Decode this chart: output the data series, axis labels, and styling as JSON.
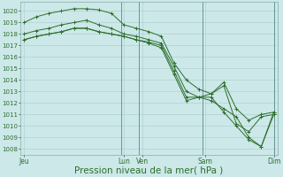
{
  "bg_color": "#cce8e8",
  "grid_color": "#aacccc",
  "line_color": "#2d6e2d",
  "xlabel": "Pression niveau de la mer( hPa )",
  "xlabel_fontsize": 7.5,
  "ylim": [
    1007.5,
    1020.8
  ],
  "yticks": [
    1008,
    1009,
    1010,
    1011,
    1012,
    1013,
    1014,
    1015,
    1016,
    1017,
    1018,
    1019,
    1020
  ],
  "ytick_fontsize": 5.0,
  "xtick_labels": [
    "Jeu",
    "Lun",
    "Ven",
    "Sam",
    "Dim"
  ],
  "xtick_positions": [
    0.0,
    0.38,
    0.44,
    0.69,
    0.95
  ],
  "vline_positions": [
    0.38,
    0.44,
    0.69,
    0.95
  ],
  "n_points": 21,
  "s1_x": [
    0,
    1,
    2,
    3,
    4,
    5,
    6,
    7,
    8,
    9,
    10,
    11,
    12,
    13,
    14,
    15,
    16,
    17,
    18,
    19,
    20
  ],
  "s1": [
    1019.0,
    1019.5,
    1019.8,
    1020.0,
    1020.2,
    1020.2,
    1020.1,
    1019.8,
    1018.8,
    1018.5,
    1018.2,
    1017.8,
    1015.5,
    1014.0,
    1013.2,
    1012.8,
    1013.8,
    1011.5,
    1010.5,
    1011.0,
    1011.2
  ],
  "s2_x": [
    0,
    1,
    2,
    3,
    4,
    5,
    6,
    7,
    8,
    9,
    10,
    11,
    12,
    13,
    14,
    15,
    16,
    17,
    18,
    19,
    20
  ],
  "s2": [
    1018.0,
    1018.3,
    1018.5,
    1018.8,
    1019.0,
    1019.2,
    1018.8,
    1018.5,
    1018.0,
    1017.8,
    1017.5,
    1017.2,
    1015.2,
    1013.0,
    1012.5,
    1012.8,
    1013.5,
    1010.2,
    1009.5,
    1010.8,
    1011.0
  ],
  "s3_x": [
    0,
    1,
    2,
    3,
    4,
    5,
    6,
    7,
    8,
    9,
    10,
    11,
    12,
    13,
    14,
    15,
    16,
    17,
    18,
    19,
    20
  ],
  "s3": [
    1017.5,
    1017.8,
    1018.0,
    1018.2,
    1018.5,
    1018.5,
    1018.2,
    1018.0,
    1017.8,
    1017.5,
    1017.3,
    1017.0,
    1014.8,
    1012.5,
    1012.5,
    1012.2,
    1011.5,
    1010.8,
    1009.0,
    1008.2,
    1011.0
  ],
  "s4_x": [
    0,
    1,
    2,
    3,
    4,
    5,
    6,
    7,
    8,
    9,
    10,
    11,
    12,
    13,
    14,
    15,
    16,
    17,
    18,
    19,
    20
  ],
  "s4": [
    1017.5,
    1017.8,
    1018.0,
    1018.2,
    1018.5,
    1018.5,
    1018.2,
    1018.0,
    1017.8,
    1017.5,
    1017.2,
    1016.8,
    1014.5,
    1012.2,
    1012.5,
    1012.5,
    1011.2,
    1010.0,
    1008.8,
    1008.2,
    1011.2
  ]
}
